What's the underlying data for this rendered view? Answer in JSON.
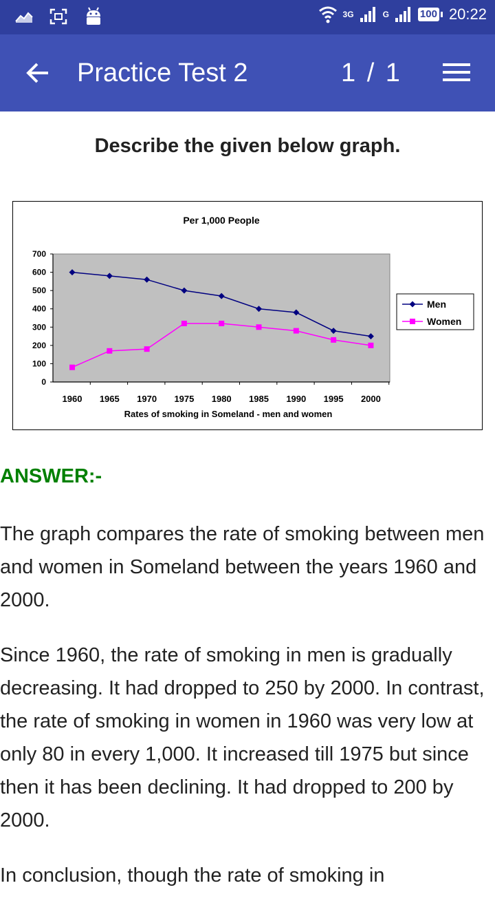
{
  "status_bar": {
    "network_type": "3G",
    "network_type_2": "G",
    "battery": "100",
    "time": "20:22"
  },
  "toolbar": {
    "title": "Practice Test 2",
    "pager": "1 / 1"
  },
  "question": "Describe the given below graph.",
  "chart_data": {
    "type": "line",
    "title": "Per 1,000 People",
    "xlabel": "Rates of smoking in Someland - men and women",
    "ylabel": "",
    "categories": [
      "1960",
      "1965",
      "1970",
      "1975",
      "1980",
      "1985",
      "1990",
      "1995",
      "2000"
    ],
    "yticks": [
      "0",
      "100",
      "200",
      "300",
      "400",
      "500",
      "600",
      "700"
    ],
    "ylim": [
      0,
      700
    ],
    "legend_position": "right",
    "series": [
      {
        "name": "Men",
        "values": [
          600,
          580,
          560,
          500,
          470,
          400,
          380,
          280,
          250
        ],
        "color": "#000080",
        "marker": "diamond"
      },
      {
        "name": "Women",
        "values": [
          80,
          170,
          180,
          320,
          320,
          300,
          280,
          230,
          200
        ],
        "color": "#ff00ff",
        "marker": "square"
      }
    ],
    "plot_background": "#c0c0c0"
  },
  "answer_label": "ANSWER:-",
  "answer_paragraphs": [
    "The graph compares the rate of smoking between men and women in Someland between the years 1960 and 2000.",
    "Since 1960, the rate of smoking in men is gradually decreasing. It had dropped to 250 by 2000. In contrast, the rate of smoking in women in 1960 was very low at only 80 in every 1,000. It increased till 1975 but since then it has been declining. It had dropped to 200 by 2000.",
    "In conclusion, though the rate of smoking in"
  ]
}
